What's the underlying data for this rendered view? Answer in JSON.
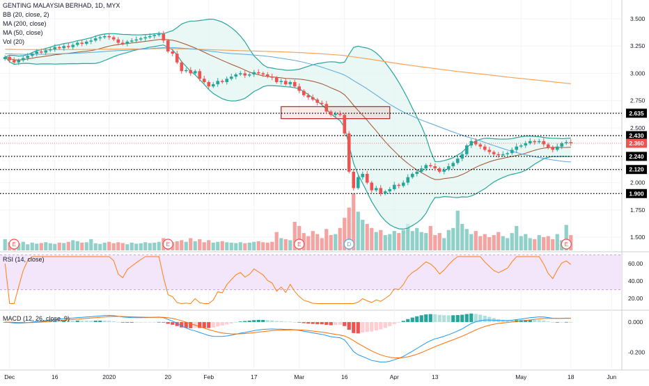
{
  "chart_data": {
    "type": "candlestick",
    "title": "GENTING MALAYSIA BERHAD, 1D, MYX",
    "indicators": [
      "BB (20, close, 2)",
      "MA (200, close)",
      "MA (50, close)",
      "Vol (20)"
    ],
    "price_axis": {
      "range": [
        1.38,
        3.62
      ],
      "ticks": [
        "3.500",
        "3.250",
        "3.000",
        "2.750",
        "2.500",
        "2.250",
        "2.000",
        "1.750",
        "1.500"
      ]
    },
    "x_ticks": [
      {
        "label": "Dec",
        "i": 1
      },
      {
        "label": "16",
        "i": 11
      },
      {
        "label": "2020",
        "i": 23
      },
      {
        "label": "20",
        "i": 36
      },
      {
        "label": "Feb",
        "i": 45
      },
      {
        "label": "17",
        "i": 55
      },
      {
        "label": "Mar",
        "i": 65
      },
      {
        "label": "16",
        "i": 75
      },
      {
        "label": "Apr",
        "i": 86
      },
      {
        "label": "13",
        "i": 95
      },
      {
        "label": "May",
        "i": 114
      },
      {
        "label": "18",
        "i": 125
      },
      {
        "label": "Jun",
        "i": 134
      }
    ],
    "horizontal_levels": [
      {
        "value": 2.635,
        "label": "2.635"
      },
      {
        "value": 2.43,
        "label": "2.430"
      },
      {
        "value": 2.24,
        "label": "2.240"
      },
      {
        "value": 2.12,
        "label": "2.120"
      },
      {
        "value": 1.9,
        "label": "1.900"
      }
    ],
    "last_price": {
      "value": 2.36,
      "label": "2.360"
    },
    "close": [
      3.15,
      3.12,
      3.1,
      3.12,
      3.14,
      3.16,
      3.18,
      3.2,
      3.19,
      3.21,
      3.22,
      3.24,
      3.23,
      3.25,
      3.24,
      3.26,
      3.28,
      3.27,
      3.29,
      3.3,
      3.32,
      3.33,
      3.34,
      3.33,
      3.31,
      3.28,
      3.27,
      3.29,
      3.3,
      3.31,
      3.32,
      3.33,
      3.34,
      3.35,
      3.36,
      3.3,
      3.2,
      3.18,
      3.1,
      3.02,
      3.03,
      3.0,
      3.02,
      2.95,
      2.92,
      2.88,
      2.9,
      2.93,
      2.92,
      2.95,
      2.97,
      2.99,
      3.0,
      2.98,
      2.99,
      3.01,
      3.0,
      2.99,
      2.97,
      2.96,
      2.92,
      2.93,
      2.9,
      2.92,
      2.88,
      2.84,
      2.8,
      2.78,
      2.76,
      2.73,
      2.72,
      2.65,
      2.62,
      2.63,
      2.62,
      2.45,
      2.1,
      1.95,
      2.05,
      2.08,
      2.0,
      1.93,
      1.95,
      1.9,
      1.92,
      1.94,
      1.98,
      1.97,
      2.0,
      2.05,
      2.08,
      2.1,
      2.13,
      2.16,
      2.15,
      2.13,
      2.1,
      2.12,
      2.15,
      2.18,
      2.22,
      2.26,
      2.34,
      2.38,
      2.35,
      2.33,
      2.3,
      2.28,
      2.26,
      2.25,
      2.26,
      2.27,
      2.3,
      2.33,
      2.34,
      2.36,
      2.38,
      2.37,
      2.38,
      2.35,
      2.32,
      2.3,
      2.33,
      2.36,
      2.37,
      2.36
    ],
    "volume": [
      0.55,
      0.4,
      0.45,
      0.35,
      0.42,
      0.3,
      0.38,
      0.33,
      0.36,
      0.4,
      0.35,
      0.32,
      0.38,
      0.36,
      0.42,
      0.5,
      0.45,
      0.38,
      0.4,
      0.55,
      0.35,
      0.32,
      0.38,
      0.42,
      0.35,
      0.4,
      0.36,
      0.3,
      0.38,
      0.33,
      0.35,
      0.4,
      0.36,
      0.38,
      0.42,
      0.6,
      0.35,
      0.4,
      0.45,
      0.5,
      0.42,
      0.6,
      0.45,
      0.55,
      0.4,
      0.5,
      0.38,
      0.42,
      0.45,
      0.4,
      0.38,
      0.36,
      0.4,
      0.35,
      0.38,
      0.42,
      0.45,
      0.4,
      0.38,
      0.42,
      0.9,
      0.6,
      0.55,
      0.5,
      1.4,
      1.2,
      0.85,
      0.7,
      0.95,
      0.8,
      0.6,
      1.05,
      0.75,
      0.8,
      1.1,
      1.6,
      2.1,
      2.8,
      1.9,
      1.5,
      1.3,
      1.1,
      0.9,
      1.0,
      0.75,
      0.8,
      0.95,
      0.85,
      1.0,
      1.3,
      0.95,
      1.1,
      0.9,
      0.85,
      1.2,
      0.75,
      0.85,
      0.6,
      1.0,
      1.1,
      1.95,
      1.3,
      1.05,
      0.8,
      0.95,
      0.7,
      0.8,
      0.65,
      0.75,
      0.9,
      0.7,
      0.6,
      0.85,
      1.2,
      0.7,
      0.8,
      0.6,
      0.55,
      0.75,
      0.65,
      0.7,
      0.55,
      0.8,
      0.5,
      1.25,
      0.75
    ],
    "volume_markers": [
      {
        "label": "E",
        "i": 2
      },
      {
        "label": "E",
        "i": 36
      },
      {
        "label": "E",
        "i": 65
      },
      {
        "label": "D",
        "i": 76
      },
      {
        "label": "E",
        "i": 124
      }
    ],
    "rsi": {
      "label": "RSI (14, close)",
      "ticks": [
        "60.00",
        "40.00",
        "20.00"
      ],
      "range": [
        8,
        72
      ],
      "band": [
        30,
        70
      ]
    },
    "macd": {
      "label": "MACD (12, 26, close, 9)",
      "ticks": [
        "0.000",
        "-0.200"
      ],
      "range": [
        -0.31,
        0.07
      ]
    },
    "colors": {
      "up": "#26a69a",
      "down": "#ef5350",
      "bb": "#26a69a",
      "bb_fill": "#e0f4f1",
      "ma200": "#f7a35c",
      "ma50": "#5aa9e0",
      "basis": "#a0522d",
      "rsi": "#ff7f0e",
      "rsi_band": "#f3e6fb",
      "macd": "#2196f3",
      "signal": "#ff6d00",
      "level": "#000000",
      "zone": "#ef5350"
    }
  }
}
